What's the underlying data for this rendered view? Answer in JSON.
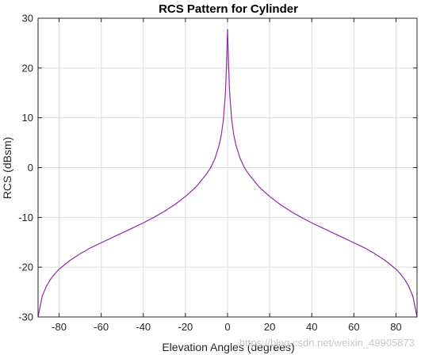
{
  "chart_data": {
    "type": "line",
    "title": "RCS Pattern for Cylinder",
    "xlabel": "Elevation Angles (degrees)",
    "ylabel": "RCS (dBsm)",
    "xlim": [
      -90,
      90
    ],
    "ylim": [
      -30,
      30
    ],
    "xticks": [
      -80,
      -60,
      -40,
      -20,
      0,
      20,
      40,
      60,
      80
    ],
    "yticks": [
      -30,
      -20,
      -10,
      0,
      10,
      20,
      30
    ],
    "grid": true,
    "series": [
      {
        "color": "#8b2da6",
        "x": [
          -90,
          -88,
          -86,
          -84,
          -82,
          -80,
          -75,
          -70,
          -65,
          -60,
          -55,
          -50,
          -45,
          -40,
          -35,
          -30,
          -25,
          -20,
          -15,
          -10,
          -8,
          -6,
          -4,
          -3,
          -2,
          -1,
          -0.5,
          0,
          0.5,
          1,
          2,
          3,
          4,
          6,
          8,
          10,
          15,
          20,
          25,
          30,
          35,
          40,
          45,
          50,
          55,
          60,
          65,
          70,
          75,
          80,
          82,
          84,
          86,
          88,
          90
        ],
        "y": [
          -30,
          -25.8,
          -23.8,
          -22.4,
          -21.3,
          -20.4,
          -18.7,
          -17.3,
          -16.1,
          -15.1,
          -14.1,
          -13.1,
          -12.1,
          -11.1,
          -10.0,
          -8.8,
          -7.4,
          -5.8,
          -3.9,
          -1.3,
          0.0,
          1.8,
          4.5,
          6.5,
          9.5,
          15.0,
          20.5,
          27.8,
          20.5,
          15.0,
          9.5,
          6.5,
          4.5,
          1.8,
          0.0,
          -1.3,
          -3.9,
          -5.8,
          -7.4,
          -8.8,
          -10.0,
          -11.1,
          -12.1,
          -13.1,
          -14.1,
          -15.1,
          -16.1,
          -17.3,
          -18.7,
          -20.4,
          -21.3,
          -22.4,
          -23.8,
          -25.8,
          -30
        ]
      }
    ]
  },
  "watermark": "https://blog.csdn.net/weixin_49905873"
}
